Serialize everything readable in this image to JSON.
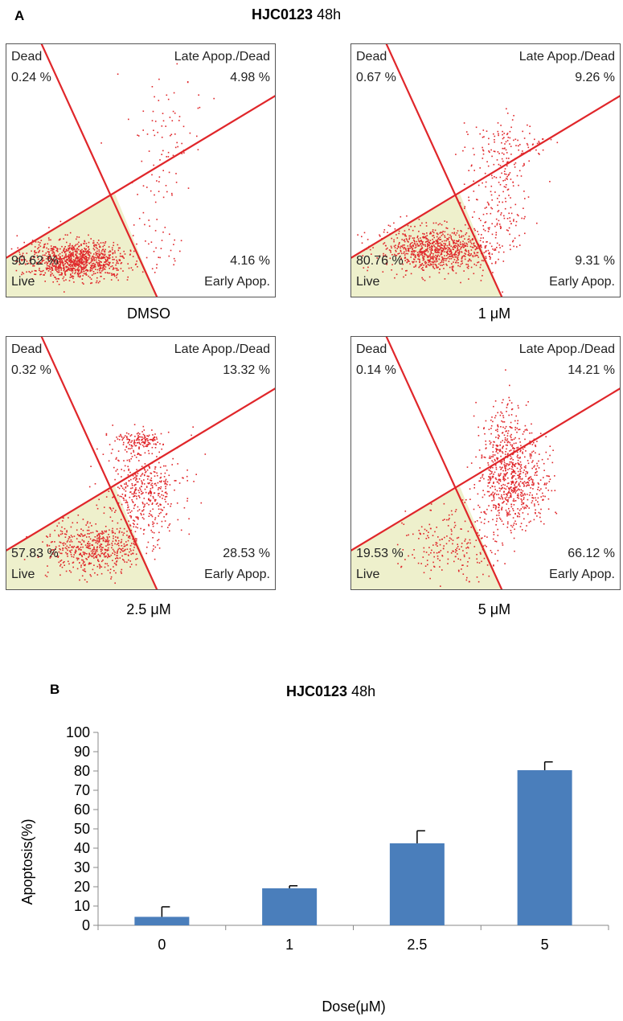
{
  "panel_a": {
    "label": "A",
    "title_bold": "HJC0123",
    "title_rest": "48h",
    "quadrant_names": {
      "dead": "Dead",
      "late": "Late Apop./Dead",
      "live": "Live",
      "early": "Early Apop."
    },
    "plots": [
      {
        "caption": "DMSO",
        "dead_pct": "0.24 %",
        "late_pct": "4.98 %",
        "live_pct": "90.62 %",
        "early_pct": "4.16 %"
      },
      {
        "caption": "1 μM",
        "dead_pct": "0.67 %",
        "late_pct": "9.26 %",
        "live_pct": "80.76 %",
        "early_pct": "9.31 %"
      },
      {
        "caption": "2.5 μM",
        "dead_pct": "0.32 %",
        "late_pct": "13.32 %",
        "live_pct": "57.83 %",
        "early_pct": "28.53 %"
      },
      {
        "caption": "5 μM",
        "dead_pct": "0.14 %",
        "late_pct": "14.21 %",
        "live_pct": "19.53 %",
        "early_pct": "66.12 %"
      }
    ],
    "colors": {
      "gate_line": "#e0262a",
      "events": "#e0262a",
      "live_fill": "#eef0cc"
    }
  },
  "panel_b": {
    "label": "B",
    "title_bold": "HJC0123",
    "title_rest": "48h"
  },
  "chart_data": {
    "type": "bar",
    "categories": [
      "0",
      "1",
      "2.5",
      "5"
    ],
    "values": [
      4.4,
      19.2,
      42.5,
      80.4
    ],
    "errors": [
      5.2,
      1.3,
      6.5,
      4.3
    ],
    "xlabel": "Dose(μM)",
    "ylabel": "Apoptosis(%)",
    "ylim": [
      0,
      100
    ],
    "yticks": [
      0,
      10,
      20,
      30,
      40,
      50,
      60,
      70,
      80,
      90,
      100
    ],
    "grid": false,
    "bar_color": "#4a7ebb"
  }
}
